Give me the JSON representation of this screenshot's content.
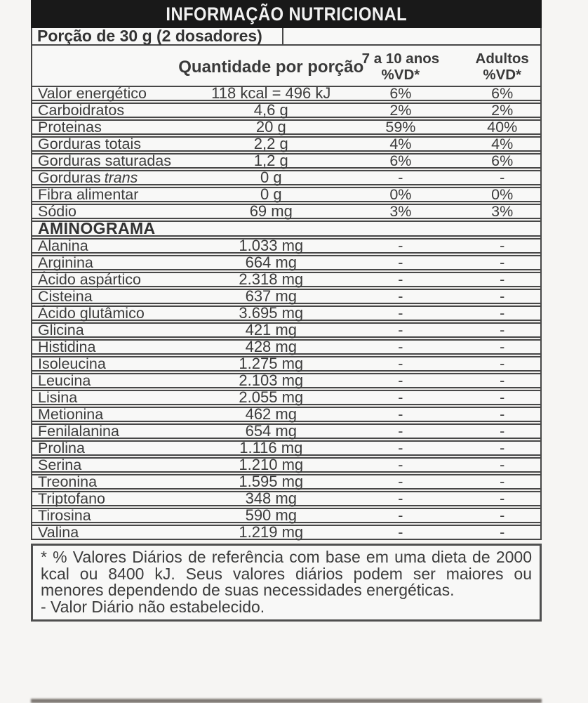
{
  "title_bar": {
    "title": "INFORMAÇÃO NUTRICIONAL"
  },
  "serving": {
    "label": "Porção de 30 g (2 dosadores)"
  },
  "table": {
    "headers": {
      "quantity": "Quantidade por porção",
      "vd_children_line1": "7 a 10 anos",
      "vd_children_line2": "%VD*",
      "vd_adults_line1": "Adultos",
      "vd_adults_line2": "%VD*"
    },
    "nutrients": [
      {
        "label": "Valor energético",
        "qty": "118 kcal = 496 kJ",
        "vd_children": "6%",
        "vd_adults": "6%"
      },
      {
        "label": "Carboidratos",
        "qty": "4,6 g",
        "vd_children": "2%",
        "vd_adults": "2%"
      },
      {
        "label": "Proteinas",
        "qty": "20 g",
        "vd_children": "59%",
        "vd_adults": "40%"
      },
      {
        "label": "Gorduras totais",
        "qty": "2,2 g",
        "vd_children": "4%",
        "vd_adults": "4%"
      },
      {
        "label": "Gorduras saturadas",
        "qty": "1,2 g",
        "vd_children": "6%",
        "vd_adults": "6%"
      },
      {
        "label": "Gorduras",
        "label_italic": "trans",
        "qty": "0 g",
        "vd_children": "-",
        "vd_adults": "-"
      },
      {
        "label": "Fibra alimentar",
        "qty": "0 g",
        "vd_children": "0%",
        "vd_adults": "0%"
      },
      {
        "label": "Sódio",
        "qty": "69 mg",
        "vd_children": "3%",
        "vd_adults": "3%"
      }
    ],
    "section_title": "AMINOGRAMA",
    "amino_acids": [
      {
        "label": "Alanina",
        "qty": "1.033 mg",
        "vd_children": "-",
        "vd_adults": "-"
      },
      {
        "label": "Arginina",
        "qty": "664 mg",
        "vd_children": "-",
        "vd_adults": "-"
      },
      {
        "label": "Ácido aspártico",
        "qty": "2.318 mg",
        "vd_children": "-",
        "vd_adults": "-"
      },
      {
        "label": "Cisteina",
        "qty": "637 mg",
        "vd_children": "-",
        "vd_adults": "-"
      },
      {
        "label": "Ácido glutâmico",
        "qty": "3.695 mg",
        "vd_children": "-",
        "vd_adults": "-"
      },
      {
        "label": "Glicina",
        "qty": "421 mg",
        "vd_children": "-",
        "vd_adults": "-"
      },
      {
        "label": "Histidina",
        "qty": "428 mg",
        "vd_children": "-",
        "vd_adults": "-"
      },
      {
        "label": "Isoleucina",
        "qty": "1.275 mg",
        "vd_children": "-",
        "vd_adults": "-"
      },
      {
        "label": "Leucina",
        "qty": "2.103 mg",
        "vd_children": "-",
        "vd_adults": "-"
      },
      {
        "label": "Lisina",
        "qty": "2.055 mg",
        "vd_children": "-",
        "vd_adults": "-"
      },
      {
        "label": "Metionina",
        "qty": "462 mg",
        "vd_children": "-",
        "vd_adults": "-"
      },
      {
        "label": "Fenilalanina",
        "qty": "654 mg",
        "vd_children": "-",
        "vd_adults": "-"
      },
      {
        "label": "Prolina",
        "qty": "1.116 mg",
        "vd_children": "-",
        "vd_adults": "-"
      },
      {
        "label": "Serina",
        "qty": "1.210 mg",
        "vd_children": "-",
        "vd_adults": "-"
      },
      {
        "label": "Treonina",
        "qty": "1.595 mg",
        "vd_children": "-",
        "vd_adults": "-"
      },
      {
        "label": "Triptofano",
        "qty": "348 mg",
        "vd_children": "-",
        "vd_adults": "-"
      },
      {
        "label": "Tirosina",
        "qty": "590 mg",
        "vd_children": "-",
        "vd_adults": "-"
      },
      {
        "label": "Valina",
        "qty": "1.219 mg",
        "vd_children": "-",
        "vd_adults": "-"
      }
    ]
  },
  "footnote": {
    "paragraph": "* % Valores Diários de referência com base em uma dieta de 2000 kcal ou 8400 kJ. Seus valores diários podem ser maiores ou menores dependendo de suas necessidades energéticas.",
    "dash_note": "- Valor Diário não estabelecido."
  },
  "colors": {
    "title_bar_bg": "#191919",
    "border": "#474747",
    "text": "#3b3b3b"
  }
}
